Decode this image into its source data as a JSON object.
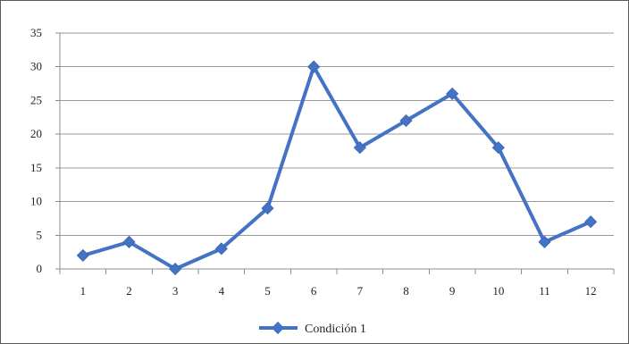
{
  "chart_data": {
    "type": "line",
    "categories": [
      "1",
      "2",
      "3",
      "4",
      "5",
      "6",
      "7",
      "8",
      "9",
      "10",
      "11",
      "12"
    ],
    "series": [
      {
        "name": "Condición 1",
        "values": [
          2,
          4,
          0,
          3,
          9,
          30,
          18,
          22,
          26,
          18,
          4,
          7
        ],
        "color": "#4472C4"
      }
    ],
    "title": "",
    "xlabel": "",
    "ylabel": "",
    "ylim": [
      0,
      35
    ],
    "yticks": [
      "0",
      "5",
      "10",
      "15",
      "20",
      "25",
      "30",
      "35"
    ],
    "grid": true,
    "legend": "bottom",
    "marker": "diamond"
  }
}
